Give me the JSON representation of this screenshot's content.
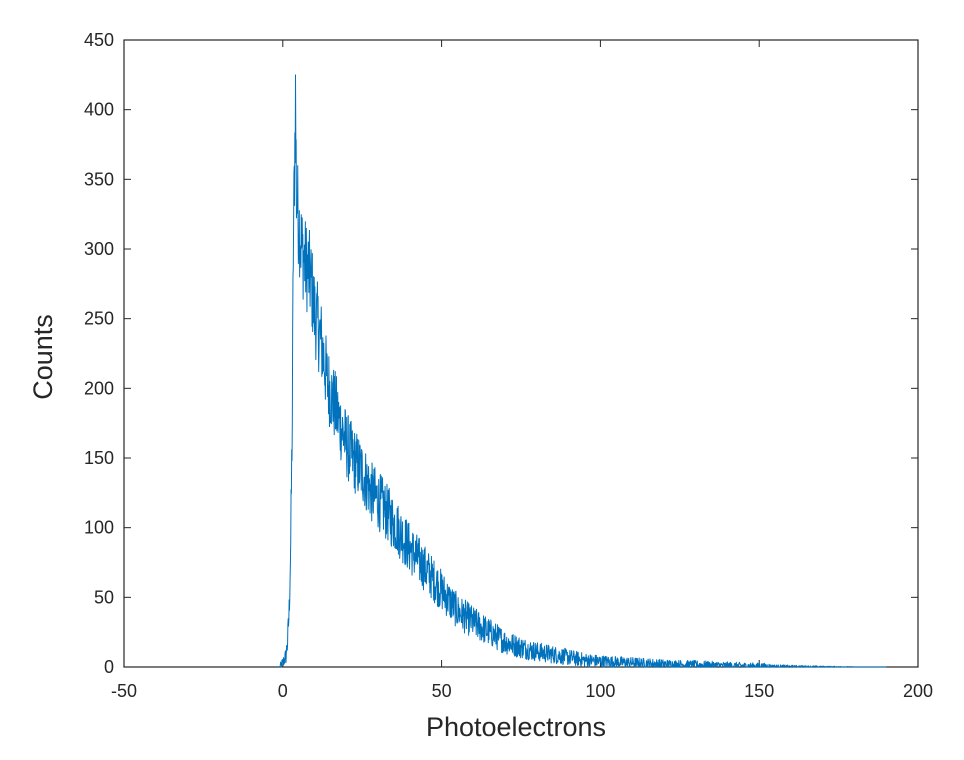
{
  "chart_data": {
    "type": "line",
    "title": "",
    "xlabel": "Photoelectrons",
    "ylabel": "Counts",
    "xlim": [
      -50,
      200
    ],
    "ylim": [
      0,
      450
    ],
    "xticks": [
      -50,
      0,
      50,
      100,
      150,
      200
    ],
    "yticks": [
      0,
      50,
      100,
      150,
      200,
      250,
      300,
      350,
      400,
      450
    ],
    "grid": false,
    "legend": "none",
    "series": [
      {
        "color": "#0072BD",
        "x": [
          -1,
          0,
          1,
          1.5,
          2,
          2.5,
          3,
          3.3,
          3.7,
          4,
          4.3,
          5,
          6,
          7,
          8,
          9,
          10,
          12,
          14,
          16,
          18,
          20,
          22,
          25,
          28,
          30,
          33,
          36,
          40,
          45,
          50,
          55,
          60,
          65,
          70,
          75,
          80,
          85,
          90,
          95,
          100,
          110,
          120,
          130,
          140,
          150,
          160,
          170,
          180,
          190
        ],
        "y": [
          0,
          3,
          8,
          18,
          40,
          90,
          180,
          300,
          360,
          410,
          340,
          320,
          300,
          290,
          285,
          275,
          255,
          235,
          205,
          190,
          175,
          160,
          150,
          140,
          125,
          120,
          110,
          100,
          85,
          70,
          55,
          40,
          32,
          25,
          18,
          14,
          11,
          9,
          7,
          5,
          4,
          3,
          2,
          1.5,
          1,
          0.6,
          0.3,
          0.1,
          0,
          0
        ]
      }
    ]
  }
}
